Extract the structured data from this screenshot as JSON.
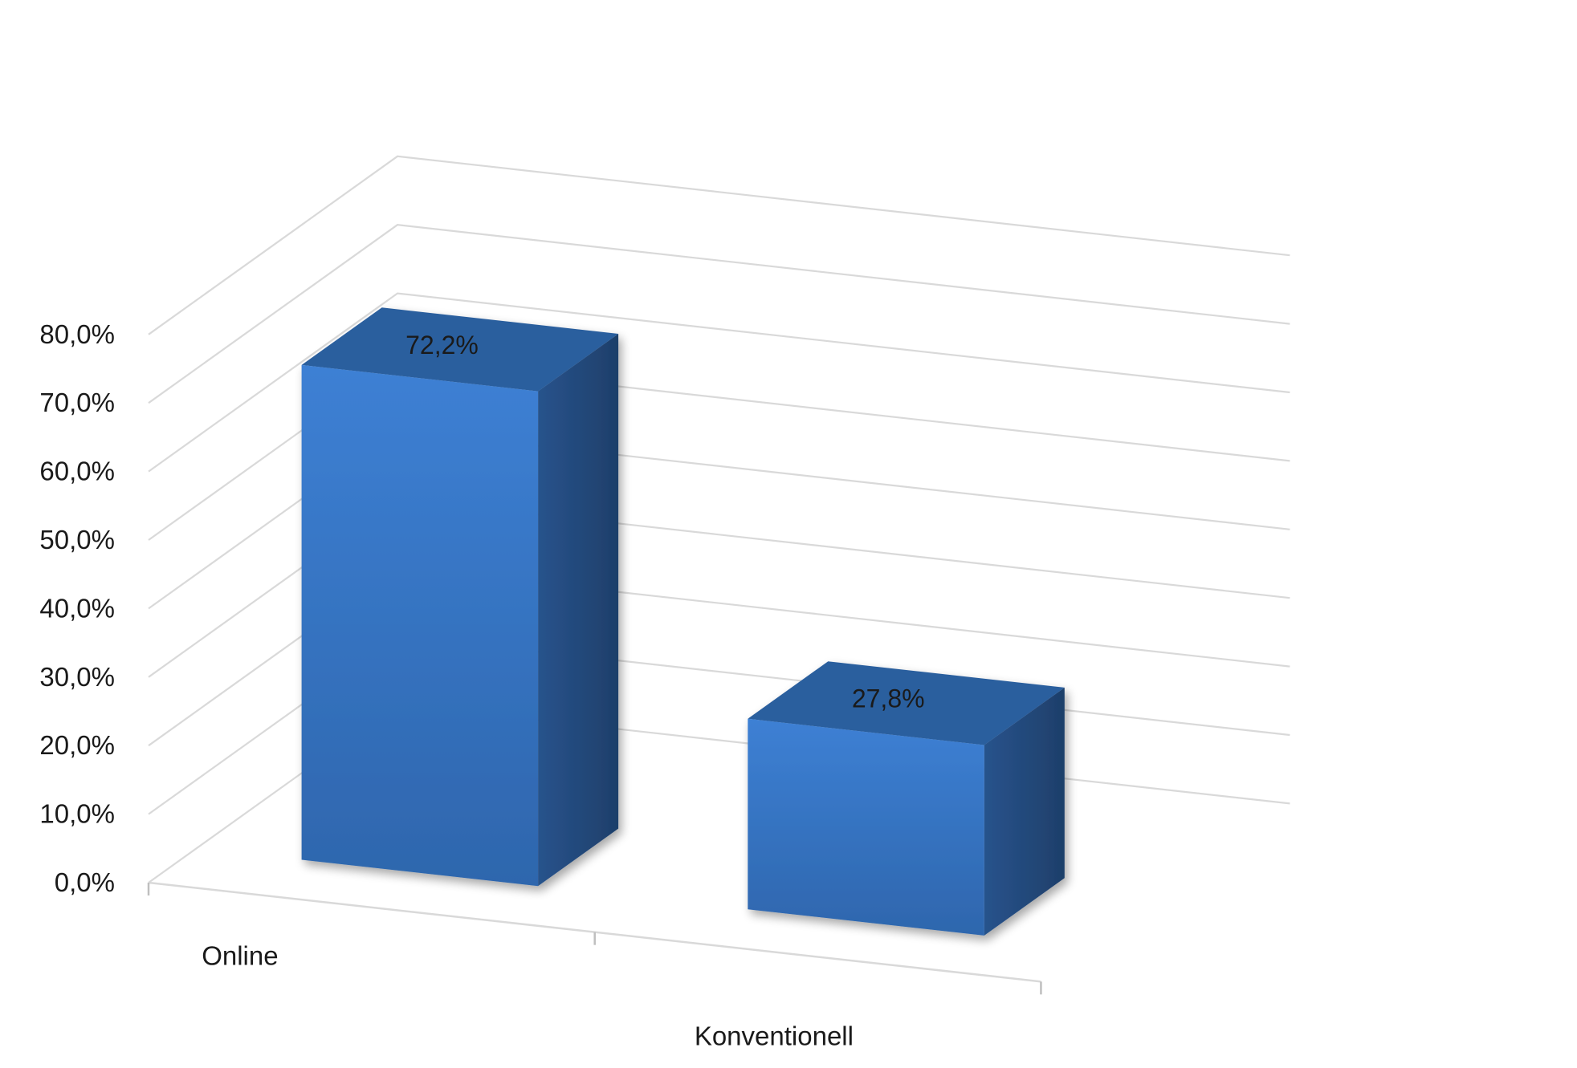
{
  "chart_data": {
    "type": "bar",
    "categories": [
      "Online",
      "Konventionell"
    ],
    "values": [
      72.2,
      27.8
    ],
    "data_labels": [
      "72,2%",
      "27,8%"
    ],
    "ylim": [
      0,
      80
    ],
    "yticks": [
      0,
      10,
      20,
      30,
      40,
      50,
      60,
      70,
      80
    ],
    "ytick_labels": [
      "0,0%",
      "10,0%",
      "20,0%",
      "30,0%",
      "40,0%",
      "50,0%",
      "60,0%",
      "70,0%",
      "80,0%"
    ],
    "title": "",
    "xlabel": "",
    "ylabel": "",
    "grid": true,
    "legend": "none",
    "style": "3d",
    "colors": {
      "bar_front": "#3a7bcf",
      "bar_side": "#234a7f",
      "bar_top": "#2c5f9e",
      "grid": "#d9d9d9"
    }
  }
}
